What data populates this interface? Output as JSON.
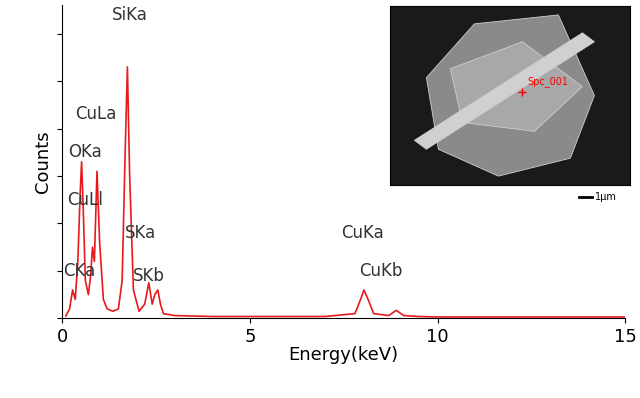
{
  "chart_data": {
    "type": "line",
    "x_label": "Energy(keV)",
    "y_label": "Counts",
    "x": [
      0.1,
      0.2,
      0.28,
      0.35,
      0.42,
      0.48,
      0.52,
      0.56,
      0.62,
      0.7,
      0.76,
      0.81,
      0.86,
      0.93,
      1.0,
      1.1,
      1.2,
      1.35,
      1.5,
      1.6,
      1.68,
      1.74,
      1.8,
      1.9,
      2.05,
      2.2,
      2.31,
      2.4,
      2.47,
      2.55,
      2.62,
      2.7,
      2.85,
      3.0,
      3.5,
      4,
      5,
      6,
      7,
      7.8,
      7.95,
      8.04,
      8.15,
      8.3,
      8.7,
      8.9,
      9.1,
      9.5,
      10,
      11,
      12,
      13,
      14,
      15
    ],
    "values": [
      0.05,
      0.2,
      0.6,
      0.4,
      1.2,
      2.6,
      3.3,
      2.4,
      0.8,
      0.5,
      0.9,
      1.5,
      1.2,
      3.1,
      1.6,
      0.4,
      0.2,
      0.15,
      0.2,
      0.8,
      3.5,
      5.3,
      3.0,
      0.6,
      0.15,
      0.3,
      0.75,
      0.3,
      0.5,
      0.6,
      0.3,
      0.1,
      0.08,
      0.06,
      0.05,
      0.04,
      0.04,
      0.04,
      0.04,
      0.1,
      0.4,
      0.6,
      0.4,
      0.1,
      0.06,
      0.17,
      0.06,
      0.04,
      0.03,
      0.03,
      0.03,
      0.03,
      0.03,
      0.03
    ],
    "color": "#e8191c",
    "xlim": [
      0,
      15
    ],
    "xticks": [
      0,
      5,
      10,
      15
    ],
    "ylim": [
      0,
      6.6
    ],
    "yticks": [
      0,
      1,
      2,
      3,
      4,
      5,
      6
    ],
    "tick_labels": "x",
    "grid": false,
    "annotations": [
      {
        "text": "CKa",
        "x": 0.45,
        "y": 1.0
      },
      {
        "text": "OKa",
        "x": 0.6,
        "y": 3.5
      },
      {
        "text": "CuLl",
        "x": 0.6,
        "y": 2.5
      },
      {
        "text": "CuLa",
        "x": 0.9,
        "y": 4.3
      },
      {
        "text": "SiKa",
        "x": 1.8,
        "y": 6.4
      },
      {
        "text": "SKa",
        "x": 2.1,
        "y": 1.8
      },
      {
        "text": "SKb",
        "x": 2.3,
        "y": 0.9
      },
      {
        "text": "CuKa",
        "x": 8.0,
        "y": 1.8
      },
      {
        "text": "CuKb",
        "x": 8.5,
        "y": 1.0
      }
    ],
    "inset": {
      "spot_label": "Spc_001",
      "scale_bar": "1µm"
    }
  }
}
